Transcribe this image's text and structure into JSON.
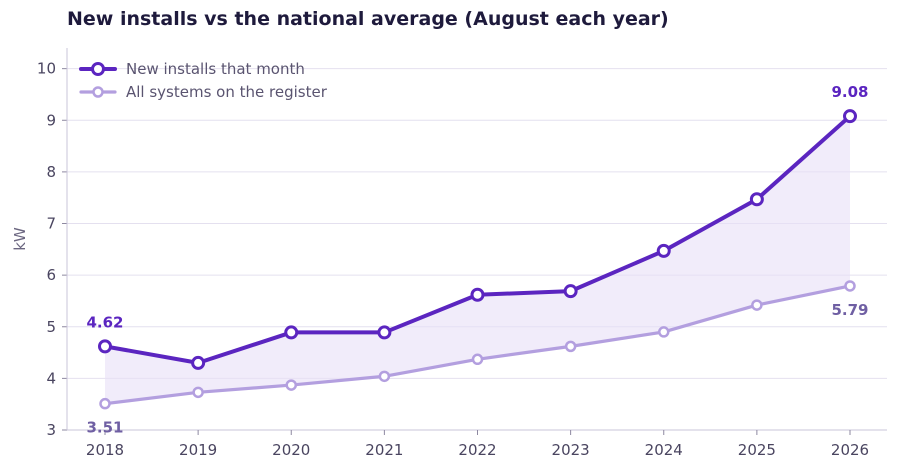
{
  "chart_data": {
    "type": "line",
    "title": "New installs vs the national average (August each year)",
    "xlabel": "",
    "ylabel": "kW",
    "ylim": [
      3,
      10.4
    ],
    "yticks": [
      3,
      4,
      5,
      6,
      7,
      8,
      9,
      10
    ],
    "categories": [
      "2018",
      "2019",
      "2020",
      "2021",
      "2022",
      "2023",
      "2024",
      "2025",
      "2026"
    ],
    "series": [
      {
        "name": "New installs that month",
        "values": [
          4.62,
          4.3,
          4.89,
          4.89,
          5.62,
          5.69,
          6.47,
          7.47,
          9.08
        ],
        "color": "#5b25c0"
      },
      {
        "name": "All systems on the register",
        "values": [
          3.51,
          3.73,
          3.87,
          4.04,
          4.37,
          4.62,
          4.9,
          5.42,
          5.79
        ],
        "color": "#b39fdf"
      }
    ],
    "data_labels": [
      {
        "series": 0,
        "index": 0,
        "text": "4.62"
      },
      {
        "series": 0,
        "index": 8,
        "text": "9.08"
      },
      {
        "series": 1,
        "index": 0,
        "text": "3.51"
      },
      {
        "series": 1,
        "index": 8,
        "text": "5.79"
      }
    ],
    "fill_between": {
      "color": "#e8e0f7"
    },
    "grid": true,
    "legend": "top-left"
  }
}
